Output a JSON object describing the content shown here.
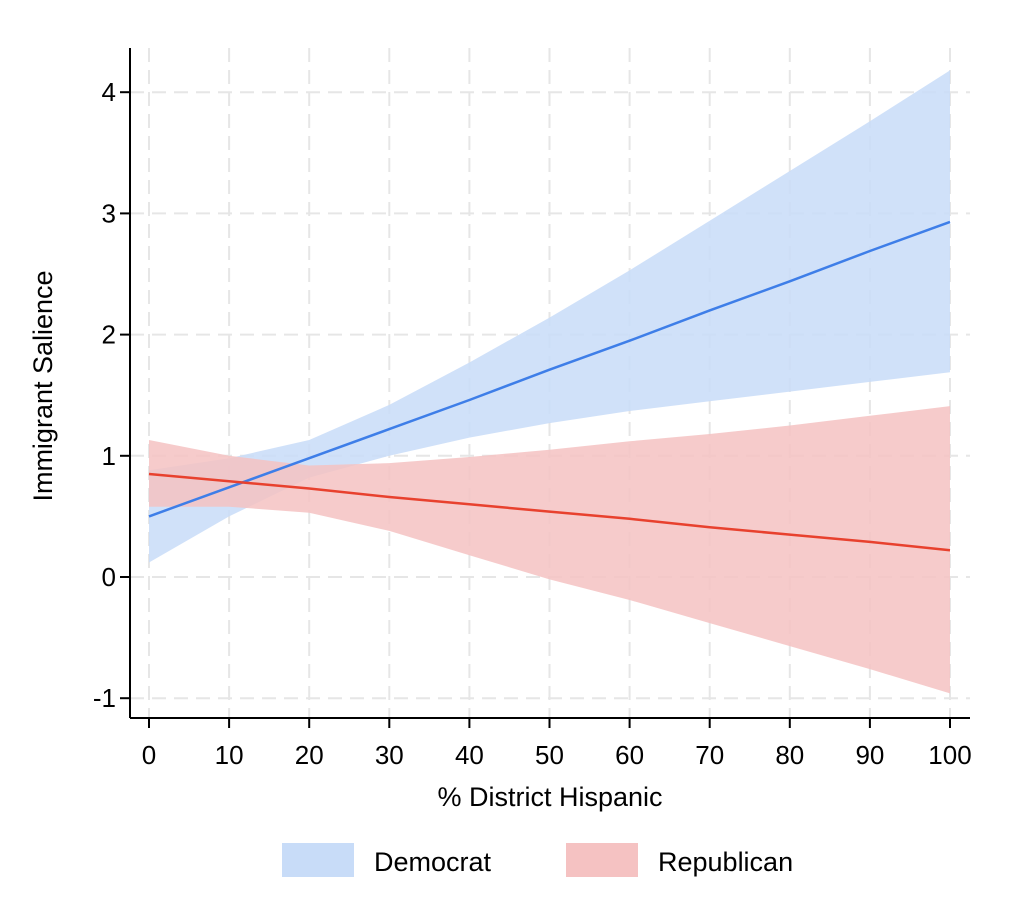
{
  "chart_data": {
    "type": "line",
    "title": "",
    "xlabel": "% District Hispanic",
    "ylabel": "Immigrant Salience",
    "xlim": [
      0,
      100
    ],
    "ylim": [
      -1.1,
      4.4
    ],
    "xticks": [
      0,
      10,
      20,
      30,
      40,
      50,
      60,
      70,
      80,
      90,
      100
    ],
    "yticks": [
      -1,
      0,
      1,
      2,
      3,
      4
    ],
    "grid": true,
    "legend": {
      "placement": "bottom-center"
    },
    "series": [
      {
        "name": "Democrat",
        "line_color": "#3e7ee8",
        "band_color": "#c8dcf8",
        "x": [
          0,
          10,
          20,
          30,
          40,
          50,
          60,
          70,
          80,
          90,
          100
        ],
        "y": [
          0.5,
          0.74,
          0.98,
          1.22,
          1.46,
          1.71,
          1.95,
          2.2,
          2.44,
          2.69,
          2.93
        ],
        "lower": [
          0.12,
          0.5,
          0.82,
          1.0,
          1.15,
          1.27,
          1.37,
          1.45,
          1.53,
          1.61,
          1.69
        ],
        "upper": [
          0.88,
          0.98,
          1.13,
          1.42,
          1.77,
          2.14,
          2.53,
          2.94,
          3.35,
          3.76,
          4.18
        ]
      },
      {
        "name": "Republican",
        "line_color": "#e8412e",
        "band_color": "#f5c2c2",
        "x": [
          0,
          10,
          20,
          30,
          40,
          50,
          60,
          70,
          80,
          90,
          100
        ],
        "y": [
          0.85,
          0.79,
          0.73,
          0.66,
          0.6,
          0.54,
          0.48,
          0.41,
          0.35,
          0.29,
          0.22
        ],
        "lower": [
          0.58,
          0.58,
          0.53,
          0.38,
          0.18,
          -0.02,
          -0.19,
          -0.38,
          -0.57,
          -0.76,
          -0.96
        ],
        "upper": [
          1.13,
          1.0,
          0.92,
          0.94,
          0.99,
          1.05,
          1.12,
          1.18,
          1.25,
          1.33,
          1.41
        ]
      }
    ]
  }
}
